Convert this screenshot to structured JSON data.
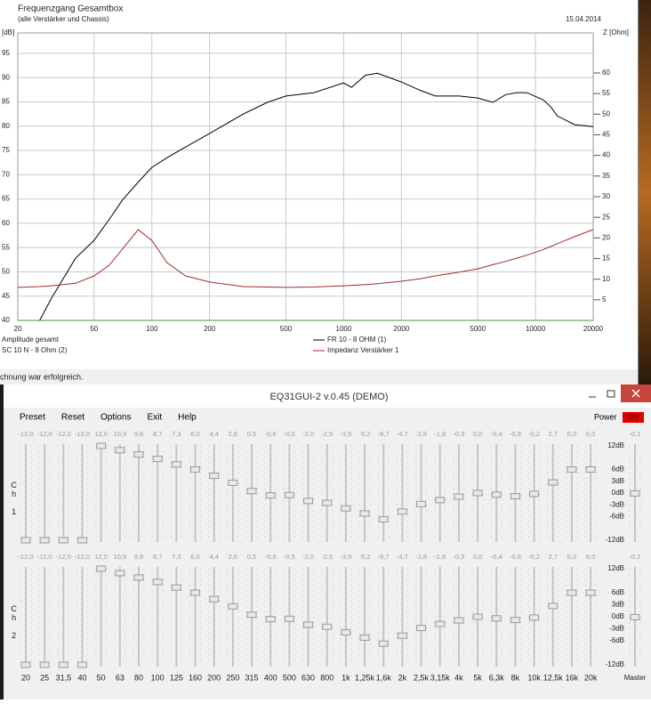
{
  "chart_data": {
    "type": "line",
    "title": "Frequenzgang Gesamtbox",
    "subtitle": "(alle Verstärker und Chassis)",
    "date": "15.04.2014",
    "y_label": "[dB]",
    "y2_label": "Z [Ohm]",
    "x": [
      20,
      26,
      30,
      40,
      50,
      60,
      70,
      85,
      100,
      120,
      150,
      200,
      300,
      400,
      500,
      700,
      1000,
      1100,
      1300,
      1500,
      2000,
      2500,
      3000,
      4000,
      5000,
      6000,
      7000,
      8000,
      9000,
      11000,
      12000,
      13000,
      16000,
      20000
    ],
    "series": [
      {
        "name": "FR 10 - 8 OHM (1)",
        "color": "#000000",
        "values": [
          null,
          40,
          44.6,
          52.8,
          56.5,
          60.8,
          64.7,
          68.5,
          71.5,
          73.5,
          75.7,
          78.5,
          82.5,
          84.9,
          86.2,
          86.9,
          88.9,
          88,
          90.5,
          90.9,
          89.1,
          87.4,
          86.2,
          86.2,
          85.8,
          84.9,
          86.5,
          86.9,
          86.9,
          85.4,
          84,
          82.1,
          80.3,
          79.9
        ]
      },
      {
        "name": "Impedanz Verstärker 1",
        "color": "#a52a2a",
        "axis": "y2",
        "values": [
          8,
          8.2,
          8.4,
          9,
          10.8,
          13.4,
          17.2,
          22,
          19.4,
          14,
          10.8,
          9.3,
          8.2,
          8.1,
          8,
          8.1,
          8.4,
          8.5,
          8.7,
          8.9,
          9.5,
          10.1,
          10.8,
          11.7,
          12.5,
          13.5,
          14.3,
          15.1,
          15.8,
          17.2,
          17.9,
          18.6,
          20.3,
          22
        ]
      }
    ],
    "legend_cut": [
      "Amplitude gesamt",
      "SC 10 N - 8 Ohm (2)"
    ],
    "log_x": true,
    "xlim": [
      20,
      20000
    ],
    "xticks": [
      20,
      50,
      100,
      200,
      500,
      1000,
      2000,
      5000,
      10000,
      20000
    ],
    "ylim": [
      40,
      99.2
    ],
    "yticks": [
      40,
      45,
      50,
      55,
      60,
      65,
      70,
      75,
      80,
      85,
      90,
      95
    ],
    "y2lim": [
      0,
      69.7
    ],
    "y2ticks": [
      5,
      10,
      15,
      20,
      25,
      30,
      35,
      40,
      45,
      50,
      55,
      60
    ],
    "grid": true
  },
  "status": "chnung war erfolgreich.",
  "eq": {
    "title": "EQ31GUI-2 v.0.45 (DEMO)",
    "menu": [
      "Preset",
      "Reset",
      "Options",
      "Exit",
      "Help"
    ],
    "power_label": "Power",
    "power_state": "ON",
    "bands": [
      "20",
      "25",
      "31,5",
      "40",
      "50",
      "63",
      "80",
      "100",
      "125",
      "160",
      "200",
      "250",
      "315",
      "400",
      "500",
      "630",
      "800",
      "1k",
      "1,25k",
      "1,6k",
      "2k",
      "2,5k",
      "3,15k",
      "4k",
      "5k",
      "6,3k",
      "8k",
      "10k",
      "12,5k",
      "16k",
      "20k"
    ],
    "master_label": "Master",
    "scale": [
      {
        "value": 12,
        "label": "12dB"
      },
      {
        "value": 6,
        "label": "6dB"
      },
      {
        "value": 3,
        "label": "3dB"
      },
      {
        "value": 0,
        "label": "0dB"
      },
      {
        "value": -3,
        "label": "-3dB"
      },
      {
        "value": -6,
        "label": "-6dB"
      },
      {
        "value": -12,
        "label": "-12dB"
      }
    ],
    "channels": [
      {
        "label": "Ch 1",
        "values": [
          -12,
          -12,
          -12,
          -12,
          12,
          10.9,
          9.8,
          8.7,
          7.3,
          6,
          4.4,
          2.6,
          0.5,
          -0.6,
          -0.5,
          -2,
          -2.5,
          -3.9,
          -5.2,
          -6.7,
          -4.7,
          -2.8,
          -1.8,
          -0.9,
          0,
          -0.4,
          -0.8,
          -0.2,
          2.7,
          6,
          6
        ],
        "value_labels": [
          "-12,0",
          "-12,0",
          "-12,0",
          "-12,0",
          "12,0",
          "10,9",
          "9,8",
          "8,7",
          "7,3",
          "6,0",
          "4,4",
          "2,6",
          "0,5",
          "-0,6",
          "-0,5",
          "-2,0",
          "-2,5",
          "-3,9",
          "-5,2",
          "-6,7",
          "-4,7",
          "-2,8",
          "-1,8",
          "-0,9",
          "0,0",
          "-0,4",
          "-0,8",
          "-0,2",
          "2,7",
          "6,0",
          "6,0"
        ],
        "master": -0.1,
        "master_value_label": "-0,1"
      },
      {
        "label": "Ch 2",
        "values": [
          -12,
          -12,
          -12,
          -12,
          12,
          10.9,
          9.8,
          8.7,
          7.3,
          6,
          4.4,
          2.6,
          0.5,
          -0.6,
          -0.5,
          -2,
          -2.5,
          -3.9,
          -5.2,
          -6.7,
          -4.7,
          -2.8,
          -1.8,
          -0.9,
          0,
          -0.4,
          -0.8,
          -0.2,
          2.7,
          6,
          6
        ],
        "value_labels": [
          "-12,0",
          "-12,0",
          "-12,0",
          "-12,0",
          "12,0",
          "10,9",
          "9,8",
          "8,7",
          "7,3",
          "6,0",
          "4,4",
          "2,6",
          "0,5",
          "-0,6",
          "-0,5",
          "-2,0",
          "-2,5",
          "-3,9",
          "-5,2",
          "-6,7",
          "-4,7",
          "-2,8",
          "-1,8",
          "-0,9",
          "0,0",
          "-0,4",
          "-0,8",
          "-0,2",
          "2,7",
          "6,0",
          "6,0"
        ],
        "master": -0.1,
        "master_value_label": "-0,1"
      }
    ]
  }
}
